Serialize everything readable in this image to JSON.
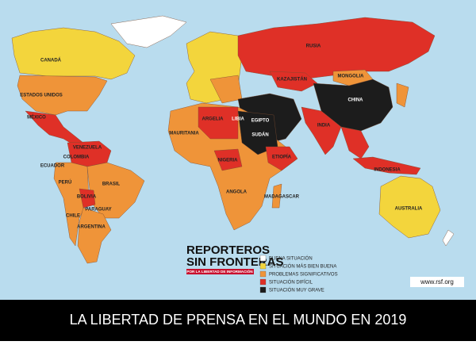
{
  "title": "LA LIBERTAD DE PRENSA EN EL MUNDO EN 2019",
  "logo": {
    "line1": "REPORTEROS",
    "line2": "SIN FRONTERAS",
    "tagline": "POR LA LIBERTAD DE INFORMACIÓN"
  },
  "website": "www.rsf.org",
  "legend": [
    {
      "label": "BUENA SITUACIÓN",
      "color": "#ffffff"
    },
    {
      "label": "SITUACIÓN MÁS BIEN BUENA",
      "color": "#f3d53c"
    },
    {
      "label": "PROBLEMAS SIGNIFICATIVOS",
      "color": "#ef9439"
    },
    {
      "label": "SITUACIÓN DIFÍCIL",
      "color": "#df3027"
    },
    {
      "label": "SITUACIÓN MUY GRAVE",
      "color": "#1c1c1c"
    }
  ],
  "countries": [
    "CANADÁ",
    "ESTADOS UNIDOS",
    "MÉXICO",
    "VENEZUELA",
    "COLOMBIA",
    "ECUADOR",
    "PERÚ",
    "BRASIL",
    "BOLIVIA",
    "PARAGUAY",
    "CHILE",
    "ARGENTINA",
    "RUSIA",
    "KAZAJISTÁN",
    "MONGOLIA",
    "CHINA",
    "INDIA",
    "ARGELIA",
    "LIBIA",
    "EGIPTO",
    "SUDÁN",
    "MAURITANIA",
    "NIGERIA",
    "ETIOPÍA",
    "ANGOLA",
    "MADAGASCAR",
    "INDONESIA",
    "AUSTRALIA"
  ]
}
